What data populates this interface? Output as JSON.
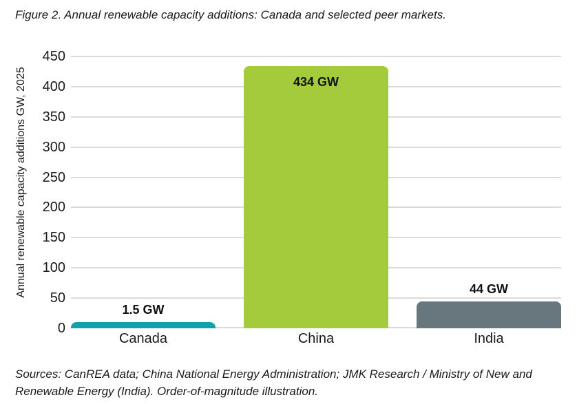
{
  "chart_data": {
    "type": "bar",
    "title": "Figure 2. Annual renewable capacity additions: Canada and selected peer markets.",
    "categories": [
      "Canada",
      "China",
      "India"
    ],
    "values": [
      1.5,
      434,
      44
    ],
    "value_labels": [
      "1.5 GW",
      "434 GW",
      "44 GW"
    ],
    "bar_colors": [
      "#11A1A7",
      "#A3CB3B",
      "#68767E"
    ],
    "xlabel": "",
    "ylabel": "Annual renewable capacity additions GW, 2025",
    "ylim": [
      0,
      450
    ],
    "yticks": [
      0,
      50,
      100,
      150,
      200,
      250,
      300,
      350,
      400,
      450
    ],
    "grid": true,
    "gridline_color": "#DBDBDB",
    "legend_position": "none"
  },
  "footer": {
    "sources_text": "Sources: CanREA data; China National Energy Administration; JMK Research / Ministry of New and Renewable Energy (India). Order-of-magnitude illustration."
  }
}
